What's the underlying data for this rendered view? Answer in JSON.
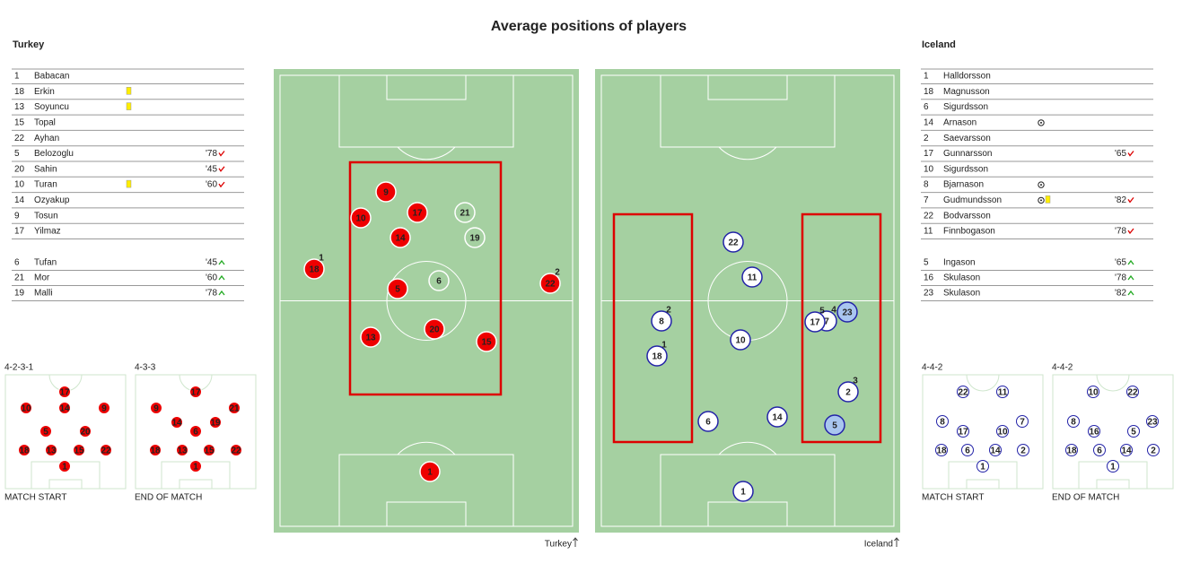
{
  "title": "Average positions of players",
  "teams": [
    {
      "name": "Turkey",
      "lineup": [
        {
          "number": "1",
          "name": "Babacan"
        },
        {
          "number": "18",
          "name": "Erkin",
          "card": "yellow"
        },
        {
          "number": "13",
          "name": "Soyuncu",
          "card": "yellow"
        },
        {
          "number": "15",
          "name": "Topal"
        },
        {
          "number": "22",
          "name": "Ayhan"
        },
        {
          "number": "5",
          "name": "Belozoglu",
          "sub_time": "'78",
          "sub": "off"
        },
        {
          "number": "20",
          "name": "Sahin",
          "sub_time": "'45",
          "sub": "off"
        },
        {
          "number": "10",
          "name": "Turan",
          "card": "yellow",
          "sub_time": "'60",
          "sub": "off"
        },
        {
          "number": "14",
          "name": "Ozyakup"
        },
        {
          "number": "9",
          "name": "Tosun"
        },
        {
          "number": "17",
          "name": "Yilmaz"
        }
      ],
      "bench": [
        {
          "number": "6",
          "name": "Tufan",
          "sub_time": "'45",
          "sub": "on"
        },
        {
          "number": "21",
          "name": "Mor",
          "sub_time": "'60",
          "sub": "on"
        },
        {
          "number": "19",
          "name": "Malli",
          "sub_time": "'78",
          "sub": "on"
        }
      ],
      "formations": [
        {
          "name": "4-2-3-1",
          "label": "MATCH START",
          "players": [
            "17",
            "10",
            "14",
            "9",
            "5",
            "20",
            "18",
            "13",
            "15",
            "22",
            "1"
          ]
        },
        {
          "name": "4-3-3",
          "label": "END OF MATCH",
          "players": [
            "17",
            "9",
            "21",
            "14",
            "19",
            "6",
            "18",
            "13",
            "15",
            "22",
            "1"
          ]
        }
      ],
      "pitch_label": "Turkey",
      "positions": [
        {
          "number": "9"
        },
        {
          "number": "10"
        },
        {
          "number": "17"
        },
        {
          "number": "21",
          "sub": true
        },
        {
          "number": "19",
          "sub": true
        },
        {
          "number": "14"
        },
        {
          "number": "18",
          "tag": "1"
        },
        {
          "number": "22",
          "tag": "2"
        },
        {
          "number": "5"
        },
        {
          "number": "6",
          "sub": true
        },
        {
          "number": "13"
        },
        {
          "number": "20"
        },
        {
          "number": "15"
        },
        {
          "number": "1"
        }
      ]
    },
    {
      "name": "Iceland",
      "lineup": [
        {
          "number": "1",
          "name": "Halldorsson"
        },
        {
          "number": "18",
          "name": "Magnusson"
        },
        {
          "number": "6",
          "name": "Sigurdsson"
        },
        {
          "number": "14",
          "name": "Arnason",
          "goal": true
        },
        {
          "number": "2",
          "name": "Saevarsson"
        },
        {
          "number": "17",
          "name": "Gunnarsson",
          "sub_time": "'65",
          "sub": "off"
        },
        {
          "number": "10",
          "name": "Sigurdsson"
        },
        {
          "number": "8",
          "name": "Bjarnason",
          "goal": true
        },
        {
          "number": "7",
          "name": "Gudmundsson",
          "goal": true,
          "card": "yellow",
          "sub_time": "'82",
          "sub": "off"
        },
        {
          "number": "22",
          "name": "Bodvarsson"
        },
        {
          "number": "11",
          "name": "Finnbogason",
          "sub_time": "'78",
          "sub": "off"
        }
      ],
      "bench": [
        {
          "number": "5",
          "name": "Ingason",
          "sub_time": "'65",
          "sub": "on"
        },
        {
          "number": "16",
          "name": "Skulason",
          "sub_time": "'78",
          "sub": "on"
        },
        {
          "number": "23",
          "name": "Skulason",
          "sub_time": "'82",
          "sub": "on"
        }
      ],
      "formations": [
        {
          "name": "4-4-2",
          "label": "MATCH START",
          "players": [
            "22",
            "11",
            "8",
            "17",
            "10",
            "7",
            "18",
            "6",
            "14",
            "2",
            "1"
          ]
        },
        {
          "name": "4-4-2",
          "label": "END OF MATCH",
          "players": [
            "10",
            "22",
            "8",
            "16",
            "5",
            "23",
            "18",
            "6",
            "14",
            "2",
            "1"
          ]
        }
      ],
      "pitch_label": "Iceland",
      "positions": [
        {
          "number": "22"
        },
        {
          "number": "11"
        },
        {
          "number": "8",
          "tag": "2"
        },
        {
          "number": "7",
          "tag": "4"
        },
        {
          "number": "17",
          "tag": "5"
        },
        {
          "number": "23",
          "sub": true
        },
        {
          "number": "10"
        },
        {
          "number": "18",
          "tag": "1"
        },
        {
          "number": "2",
          "tag": "3"
        },
        {
          "number": "6"
        },
        {
          "number": "14"
        },
        {
          "number": "5",
          "sub": true
        },
        {
          "number": "1"
        }
      ]
    }
  ]
}
